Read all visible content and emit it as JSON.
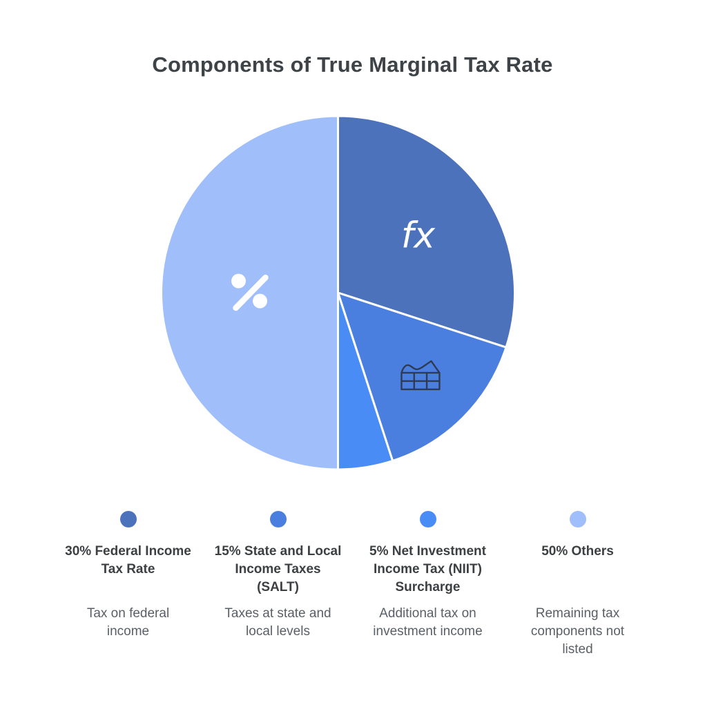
{
  "chart_data": {
    "type": "pie",
    "title": "Components of True Marginal Tax Rate",
    "direction": "clockwise",
    "start_angle_deg": 0,
    "legend_position": "bottom",
    "slice_border_color": "#ffffff",
    "slices": [
      {
        "key": "federal",
        "label": "30% Federal Income Tax Rate",
        "value": 30,
        "color": "#4B72BA",
        "icon": "fx-icon"
      },
      {
        "key": "salt",
        "label": "15% State and Local Income Taxes (SALT)",
        "value": 15,
        "color": "#4A7FE0",
        "icon": "factory-chart-icon"
      },
      {
        "key": "niit",
        "label": "5% Net Investment Income Tax (NIIT) Surcharge",
        "value": 5,
        "color": "#4A8CF6",
        "icon": null
      },
      {
        "key": "others",
        "label": "50% Others",
        "value": 50,
        "color": "#9FBEFA",
        "icon": "percent-icon"
      }
    ]
  },
  "legend": {
    "items": [
      {
        "key": "federal",
        "color": "#4B72BA",
        "title_lines": [
          "30% Federal Income",
          "Tax Rate"
        ],
        "desc_lines": [
          "Tax on federal",
          "income"
        ]
      },
      {
        "key": "salt",
        "color": "#4A7FE0",
        "title_lines": [
          "15% State and Local",
          "Income Taxes",
          "(SALT)"
        ],
        "desc_lines": [
          "Taxes at state and",
          "local levels"
        ]
      },
      {
        "key": "niit",
        "color": "#4A8CF6",
        "title_lines": [
          "5% Net Investment",
          "Income Tax (NIIT)",
          "Surcharge"
        ],
        "desc_lines": [
          "Additional tax on",
          "investment income"
        ]
      },
      {
        "key": "others",
        "color": "#9FBEFA",
        "title_lines": [
          "50% Others"
        ],
        "desc_lines": [
          "Remaining tax",
          "components not",
          "listed"
        ]
      }
    ]
  }
}
